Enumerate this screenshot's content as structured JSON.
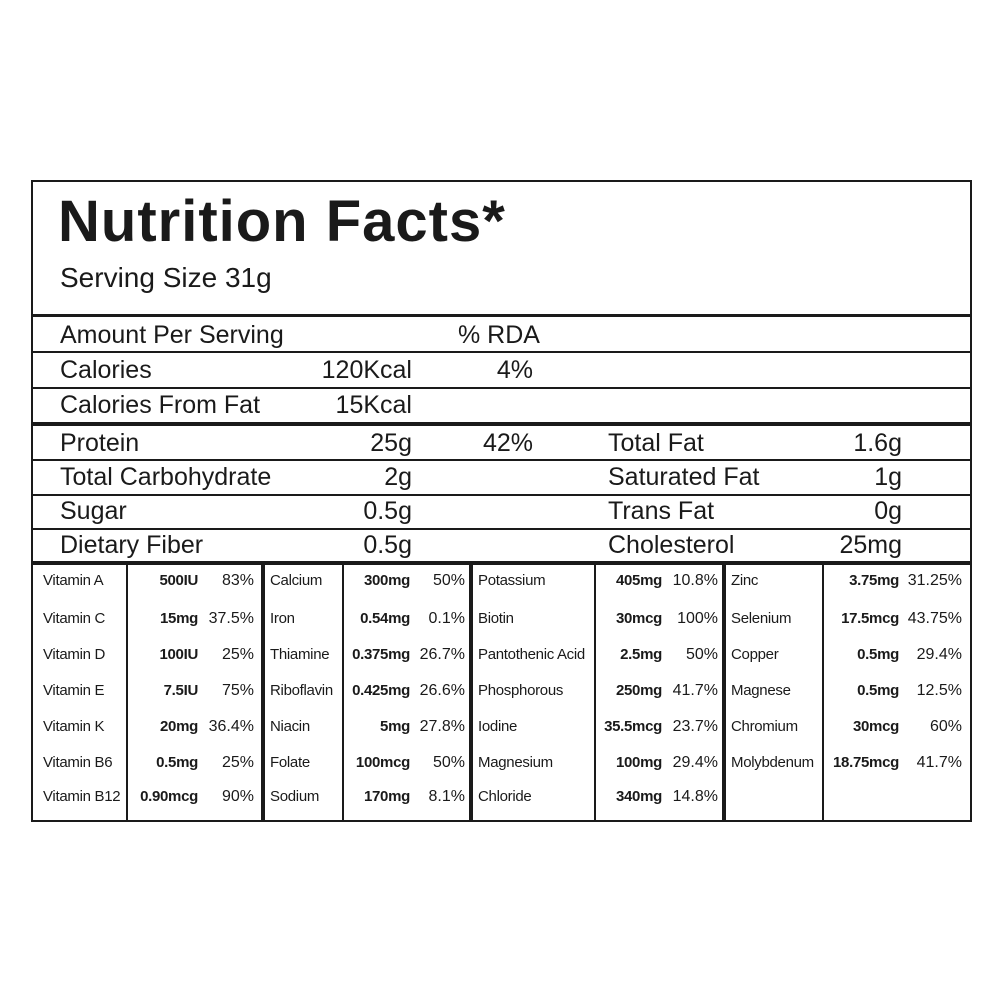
{
  "title": "Nutrition Facts*",
  "serving_size": "Serving Size 31g",
  "summary": {
    "header": [
      "Amount Per Serving",
      "% RDA"
    ],
    "rows": [
      [
        "Calories",
        "120Kcal",
        "4%"
      ],
      [
        "Calories From Fat",
        "15Kcal"
      ]
    ]
  },
  "macros": [
    {
      "left": [
        "Protein",
        "25g",
        "42%"
      ],
      "right": [
        "Total Fat",
        "1.6g"
      ]
    },
    {
      "left": [
        "Total Carbohydrate",
        "2g"
      ],
      "right": [
        "Saturated Fat",
        "1g"
      ]
    },
    {
      "left": [
        "Sugar",
        "0.5g"
      ],
      "right": [
        "Trans Fat",
        "0g"
      ]
    },
    {
      "left": [
        "Dietary Fiber",
        "0.5g"
      ],
      "right": [
        "Cholesterol",
        "25mg"
      ]
    }
  ],
  "micronutrients": [
    [
      [
        "Vitamin A",
        "500IU",
        "83%"
      ],
      [
        "Vitamin C",
        "15mg",
        "37.5%"
      ],
      [
        "Vitamin D",
        "100IU",
        "25%"
      ],
      [
        "Vitamin E",
        "7.5IU",
        "75%"
      ],
      [
        "Vitamin K",
        "20mg",
        "36.4%"
      ],
      [
        "Vitamin B6",
        "0.5mg",
        "25%"
      ],
      [
        "Vitamin B12",
        "0.90mcg",
        "90%"
      ]
    ],
    [
      [
        "Calcium",
        "300mg",
        "50%"
      ],
      [
        "Iron",
        "0.54mg",
        "0.1%"
      ],
      [
        "Thiamine",
        "0.375mg",
        "26.7%"
      ],
      [
        "Riboflavin",
        "0.425mg",
        "26.6%"
      ],
      [
        "Niacin",
        "5mg",
        "27.8%"
      ],
      [
        "Folate",
        "100mcg",
        "50%"
      ],
      [
        "Sodium",
        "170mg",
        "8.1%"
      ]
    ],
    [
      [
        "Potassium",
        "405mg",
        "10.8%"
      ],
      [
        "Biotin",
        "30mcg",
        "100%"
      ],
      [
        "Pantothenic Acid",
        "2.5mg",
        "50%"
      ],
      [
        "Phosphorous",
        "250mg",
        "41.7%"
      ],
      [
        "Iodine",
        "35.5mcg",
        "23.7%"
      ],
      [
        "Magnesium",
        "100mg",
        "29.4%"
      ],
      [
        "Chloride",
        "340mg",
        "14.8%"
      ]
    ],
    [
      [
        "Zinc",
        "3.75mg",
        "31.25%"
      ],
      [
        "Selenium",
        "17.5mcg",
        "43.75%"
      ],
      [
        "Copper",
        "0.5mg",
        "29.4%"
      ],
      [
        "Magnese",
        "0.5mg",
        "12.5%"
      ],
      [
        "Chromium",
        "30mcg",
        "60%"
      ],
      [
        "Molybdenum",
        "18.75mcg",
        "41.7%"
      ]
    ]
  ]
}
